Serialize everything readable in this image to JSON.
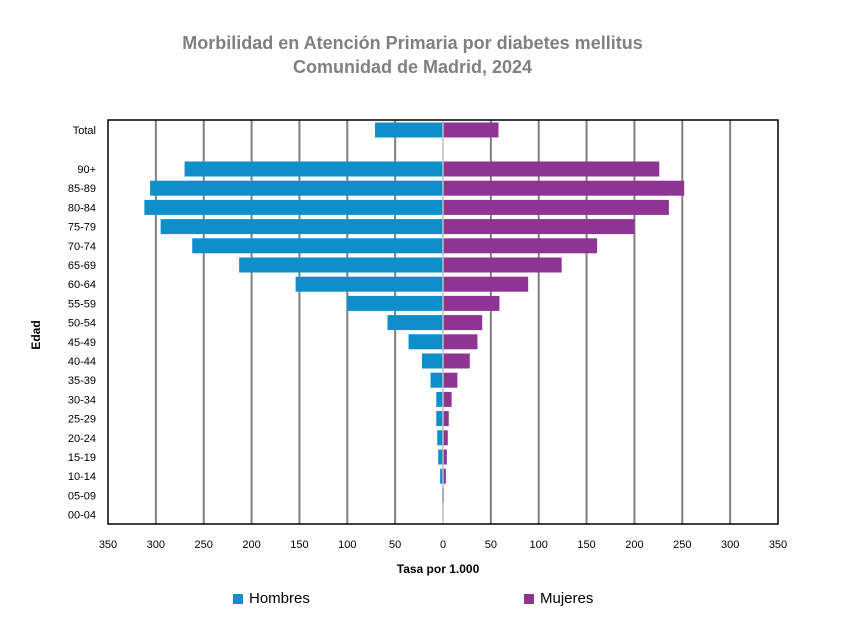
{
  "chart_data": {
    "type": "bar",
    "orientation": "horizontal",
    "title": "Morbilidad en Atención Primaria por diabetes mellitus",
    "subtitle": "Comunidad de Madrid, 2024",
    "xlabel": "Tasa por 1.000",
    "ylabel": "Edad",
    "xlim": [
      -350,
      350
    ],
    "xticks": [
      "350",
      "300",
      "250",
      "200",
      "150",
      "100",
      "50",
      "0",
      "50",
      "100",
      "150",
      "200",
      "250",
      "300",
      "350"
    ],
    "categories": [
      "Total",
      "90+",
      "85-89",
      "80-84",
      "75-79",
      "70-74",
      "65-69",
      "60-64",
      "55-59",
      "50-54",
      "45-49",
      "40-44",
      "35-39",
      "30-34",
      "25-29",
      "20-24",
      "15-19",
      "10-14",
      "05-09",
      "00-04"
    ],
    "series": [
      {
        "name": "Hombres",
        "color": "#0E8FCB",
        "values": [
          71,
          270,
          306,
          312,
          295,
          262,
          213,
          154,
          100,
          58,
          36,
          22,
          13,
          7,
          7,
          6,
          5,
          3,
          1,
          0.5
        ]
      },
      {
        "name": "Mujeres",
        "color": "#8E3593",
        "values": [
          58,
          226,
          252,
          236,
          200,
          161,
          124,
          89,
          59,
          41,
          36,
          28,
          15,
          9,
          6,
          5,
          4,
          3,
          1,
          0.5
        ]
      }
    ],
    "legend_position": "bottom"
  }
}
